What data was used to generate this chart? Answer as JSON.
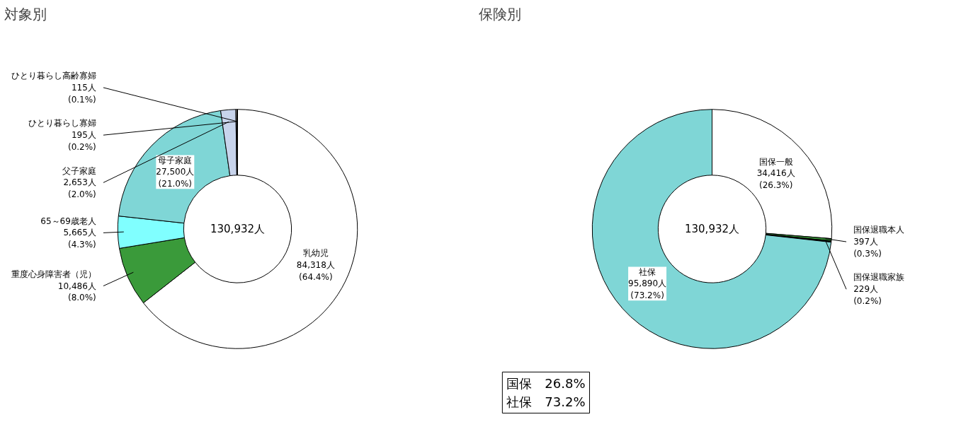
{
  "chart_data": [
    {
      "type": "donut",
      "title": "対象別",
      "categories": [
        "乳幼児",
        "重度心身障害者（児）",
        "65～69歳老人",
        "母子家庭",
        "父子家庭",
        "ひとり暮らし寡婦",
        "ひとり暮らし高齢寡婦"
      ],
      "values": [
        84318,
        10486,
        5665,
        27500,
        2653,
        195,
        115
      ],
      "value_labels": [
        "84,318人 (64.4%)",
        "10,486人 (8.0%)",
        "5,665人 (4.3%)",
        "27,500人 (21.0%)",
        "2,653人 (2.0%)",
        "195人 (0.2%)",
        "115人 (0.1%)"
      ],
      "colors": [
        "#ffffff",
        "#3a9a3a",
        "#80ffff",
        "#7fd6d6",
        "#c8d4ec",
        "#ffffff",
        "#000000"
      ],
      "annotations": [
        "130,932人"
      ]
    },
    {
      "type": "donut",
      "title": "保険別",
      "categories": [
        "国保一般",
        "国保退職本人",
        "国保退職家族",
        "社保"
      ],
      "values": [
        34416,
        397,
        229,
        95890
      ],
      "value_labels": [
        "34,416人 (26.3%)",
        "397人 (0.3%)",
        "229人 (0.2%)",
        "95,890人 (73.2%)"
      ],
      "colors": [
        "#ffffff",
        "#3a9a3a",
        "#000000",
        "#7fd6d6"
      ],
      "annotations": [
        "130,932人",
        "国保　26.8%\n社保　73.2%"
      ]
    }
  ]
}
